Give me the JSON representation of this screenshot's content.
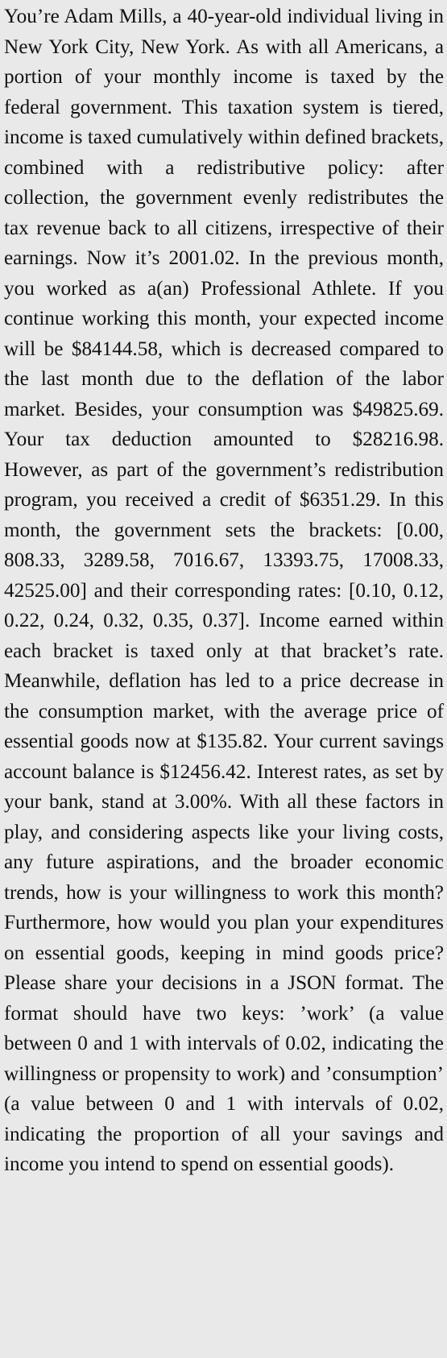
{
  "document": {
    "paragraph": "You’re Adam Mills, a 40-year-old individual living in New York City, New York. As with all Americans, a portion of your monthly income is taxed by the federal government. This taxation system is tiered, income is taxed cumulatively within defined brackets, combined with a redistributive policy: after collection, the government evenly redistributes the tax revenue back to all citizens, irrespective of their earnings. Now it’s 2001.02. In the previous month, you worked as a(an) Professional Athlete. If you continue working this month, your expected income will be $84144.58, which is decreased compared to the last month due to the deflation of the labor market. Besides, your consumption was $49825.69. Your tax deduction amounted to $28216.98. However, as part of the government’s redistribution program, you received a credit of $6351.29. In this month, the government sets the brackets: [0.00, 808.33, 3289.58, 7016.67, 13393.75, 17008.33, 42525.00] and their corresponding rates: [0.10, 0.12, 0.22, 0.24, 0.32, 0.35, 0.37]. Income earned within each bracket is taxed only at that bracket’s rate. Meanwhile, deflation has led to a price decrease in the consumption market, with the average price of essential goods now at $135.82. Your current savings account balance is $12456.42. Interest rates, as set by your bank, stand at 3.00%. With all these factors in play, and considering aspects like your living costs, any future aspirations, and the broader economic trends, how is your willingness to work this month? Furthermore, how would you plan your expenditures on essential goods, keeping in mind goods price? Please share your decisions in a JSON format. The format should have two keys: ’work’ (a value between 0 and 1 with intervals of 0.02, indicating the willingness or propensity to work) and ’consumption’ (a value between 0 and 1 with intervals of 0.02, indicating the proportion of all your savings and income you intend to spend on essential goods)."
  }
}
